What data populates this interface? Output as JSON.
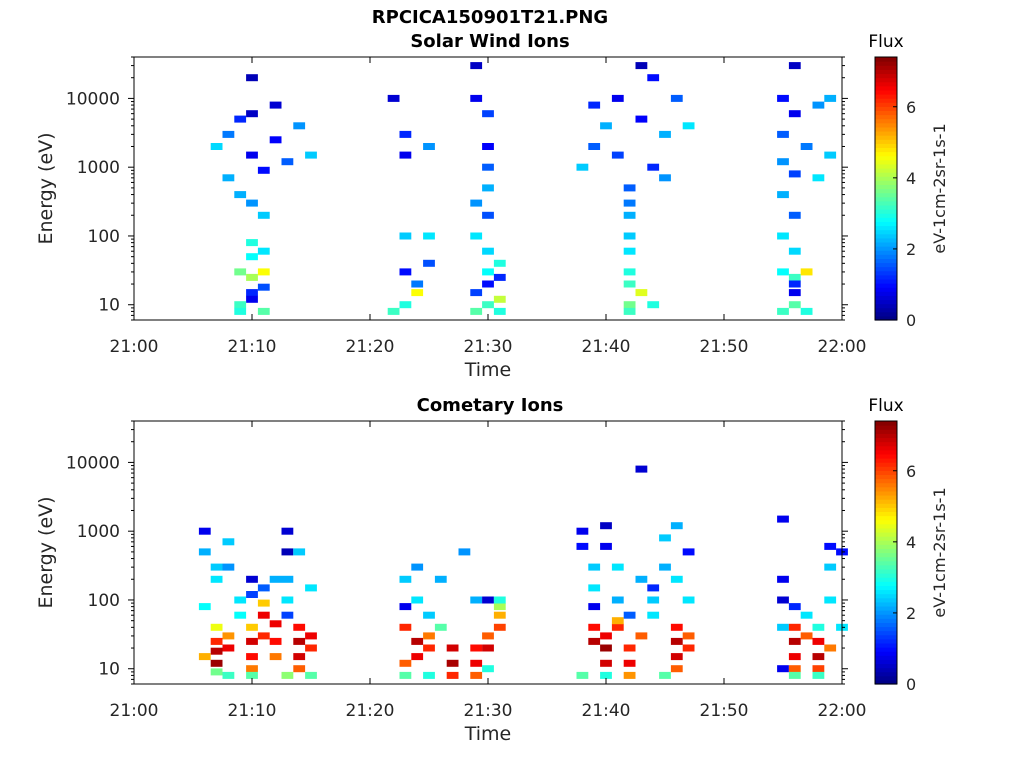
{
  "figure": {
    "title": "RPCICA150901T21.PNG"
  },
  "colorbar": {
    "colormap": "jet",
    "label": "Flux",
    "unit_label": "eV-1cm-2sr-1s-1",
    "ticks": [
      0,
      2,
      4,
      6
    ],
    "range": [
      0,
      7.4
    ]
  },
  "chart_data": [
    {
      "type": "heatmap",
      "title": "Solar Wind Ions",
      "xlabel": "Time",
      "ylabel": "Energy (eV)",
      "xlim": [
        "21:00",
        "22:00"
      ],
      "xticks": [
        "21:00",
        "21:10",
        "21:20",
        "21:30",
        "21:40",
        "21:50",
        "22:00"
      ],
      "yscale": "log",
      "ylim": [
        6,
        40000
      ],
      "yticks": [
        10,
        100,
        1000,
        10000
      ],
      "ytick_labels": [
        "10",
        "100",
        "1000",
        "10000"
      ],
      "grid": false,
      "cells": [
        [
          "21:07",
          2000,
          2.5
        ],
        [
          "21:08",
          700,
          2.2
        ],
        [
          "21:08",
          3000,
          1.8
        ],
        [
          "21:09",
          400,
          2.2
        ],
        [
          "21:09",
          5000,
          1.2
        ],
        [
          "21:10",
          300,
          2.0
        ],
        [
          "21:10",
          1500,
          0.8
        ],
        [
          "21:10",
          6000,
          0.5
        ],
        [
          "21:10",
          20000,
          0.4
        ],
        [
          "21:11",
          900,
          1.0
        ],
        [
          "21:11",
          200,
          2.4
        ],
        [
          "21:12",
          2500,
          0.9
        ],
        [
          "21:12",
          8000,
          0.6
        ],
        [
          "21:13",
          1200,
          1.6
        ],
        [
          "21:14",
          4000,
          2.0
        ],
        [
          "21:15",
          1500,
          2.4
        ],
        [
          "21:10",
          80,
          3.0
        ],
        [
          "21:10",
          50,
          2.8
        ],
        [
          "21:11",
          60,
          2.6
        ],
        [
          "21:09",
          30,
          3.6
        ],
        [
          "21:10",
          25,
          4.0
        ],
        [
          "21:11",
          30,
          4.6
        ],
        [
          "21:10",
          15,
          1.2
        ],
        [
          "21:10",
          12,
          0.8
        ],
        [
          "21:11",
          18,
          1.5
        ],
        [
          "21:09",
          10,
          3.2
        ],
        [
          "21:11",
          8,
          3.4
        ],
        [
          "21:09",
          8,
          3.0
        ],
        [
          "21:22",
          10000,
          0.6
        ],
        [
          "21:23",
          3000,
          1.2
        ],
        [
          "21:23",
          1500,
          0.8
        ],
        [
          "21:23",
          100,
          2.4
        ],
        [
          "21:23",
          30,
          1.0
        ],
        [
          "21:24",
          20,
          1.8
        ],
        [
          "21:24",
          15,
          4.6
        ],
        [
          "21:23",
          10,
          3.0
        ],
        [
          "21:22",
          8,
          3.2
        ],
        [
          "21:25",
          2000,
          2.0
        ],
        [
          "21:25",
          40,
          1.5
        ],
        [
          "21:25",
          100,
          2.6
        ],
        [
          "21:29",
          30000,
          0.5
        ],
        [
          "21:29",
          10000,
          0.8
        ],
        [
          "21:30",
          6000,
          1.4
        ],
        [
          "21:30",
          2000,
          0.9
        ],
        [
          "21:30",
          1000,
          1.6
        ],
        [
          "21:30",
          500,
          2.2
        ],
        [
          "21:29",
          300,
          2.0
        ],
        [
          "21:30",
          200,
          1.5
        ],
        [
          "21:29",
          100,
          2.6
        ],
        [
          "21:30",
          60,
          2.5
        ],
        [
          "21:30",
          30,
          2.8
        ],
        [
          "21:30",
          20,
          1.0
        ],
        [
          "21:29",
          15,
          1.4
        ],
        [
          "21:31",
          12,
          4.2
        ],
        [
          "21:30",
          10,
          3.2
        ],
        [
          "21:31",
          25,
          1.2
        ],
        [
          "21:31",
          40,
          3.0
        ],
        [
          "21:29",
          8,
          3.4
        ],
        [
          "21:31",
          8,
          3.0
        ],
        [
          "21:38",
          1000,
          2.4
        ],
        [
          "21:39",
          2000,
          1.6
        ],
        [
          "21:39",
          8000,
          1.2
        ],
        [
          "21:40",
          4000,
          2.2
        ],
        [
          "21:41",
          10000,
          0.8
        ],
        [
          "21:41",
          1500,
          1.4
        ],
        [
          "21:42",
          500,
          1.6
        ],
        [
          "21:42",
          300,
          1.8
        ],
        [
          "21:42",
          200,
          2.2
        ],
        [
          "21:42",
          100,
          2.4
        ],
        [
          "21:42",
          60,
          2.6
        ],
        [
          "21:42",
          30,
          3.0
        ],
        [
          "21:42",
          20,
          3.2
        ],
        [
          "21:43",
          15,
          4.4
        ],
        [
          "21:42",
          10,
          3.6
        ],
        [
          "21:42",
          8,
          3.2
        ],
        [
          "21:43",
          30000,
          0.4
        ],
        [
          "21:43",
          5000,
          0.9
        ],
        [
          "21:44",
          1000,
          1.2
        ],
        [
          "21:44",
          20000,
          1.0
        ],
        [
          "21:45",
          3000,
          2.2
        ],
        [
          "21:45",
          700,
          2.0
        ],
        [
          "21:46",
          10000,
          1.6
        ],
        [
          "21:47",
          4000,
          2.6
        ],
        [
          "21:44",
          10,
          3.0
        ],
        [
          "21:55",
          10000,
          1.0
        ],
        [
          "21:55",
          3000,
          1.6
        ],
        [
          "21:55",
          1200,
          2.0
        ],
        [
          "21:56",
          6000,
          0.8
        ],
        [
          "21:56",
          30000,
          0.5
        ],
        [
          "21:56",
          800,
          1.4
        ],
        [
          "21:55",
          400,
          2.2
        ],
        [
          "21:56",
          200,
          1.6
        ],
        [
          "21:55",
          100,
          2.6
        ],
        [
          "21:56",
          60,
          2.5
        ],
        [
          "21:55",
          30,
          2.8
        ],
        [
          "21:56",
          25,
          3.2
        ],
        [
          "21:57",
          30,
          4.8
        ],
        [
          "21:56",
          20,
          1.2
        ],
        [
          "21:56",
          15,
          0.8
        ],
        [
          "21:56",
          10,
          3.4
        ],
        [
          "21:55",
          8,
          3.2
        ],
        [
          "21:57",
          8,
          3.0
        ],
        [
          "21:57",
          2000,
          1.8
        ],
        [
          "21:58",
          8000,
          2.0
        ],
        [
          "21:59",
          1500,
          2.4
        ],
        [
          "21:59",
          10000,
          2.2
        ],
        [
          "21:58",
          700,
          2.6
        ]
      ]
    },
    {
      "type": "heatmap",
      "title": "Cometary Ions",
      "xlabel": "Time",
      "ylabel": "Energy (eV)",
      "xlim": [
        "21:00",
        "22:00"
      ],
      "xticks": [
        "21:00",
        "21:10",
        "21:20",
        "21:30",
        "21:40",
        "21:50",
        "22:00"
      ],
      "yscale": "log",
      "ylim": [
        6,
        40000
      ],
      "yticks": [
        10,
        100,
        1000,
        10000
      ],
      "ytick_labels": [
        "10",
        "100",
        "1000",
        "10000"
      ],
      "grid": false,
      "cells": [
        [
          "21:06",
          1000,
          0.8
        ],
        [
          "21:06",
          500,
          2.2
        ],
        [
          "21:07",
          300,
          2.4
        ],
        [
          "21:07",
          200,
          2.6
        ],
        [
          "21:06",
          80,
          2.8
        ],
        [
          "21:07",
          40,
          4.5
        ],
        [
          "21:07",
          25,
          6.2
        ],
        [
          "21:07",
          18,
          7.0
        ],
        [
          "21:07",
          12,
          7.2
        ],
        [
          "21:08",
          20,
          6.6
        ],
        [
          "21:08",
          30,
          5.4
        ],
        [
          "21:07",
          9,
          3.6
        ],
        [
          "21:08",
          8,
          3.2
        ],
        [
          "21:06",
          15,
          5.2
        ],
        [
          "21:08",
          300,
          2.0
        ],
        [
          "21:08",
          700,
          2.4
        ],
        [
          "21:09",
          100,
          2.6
        ],
        [
          "21:09",
          60,
          2.8
        ],
        [
          "21:10",
          200,
          0.6
        ],
        [
          "21:10",
          120,
          1.4
        ],
        [
          "21:10",
          40,
          5.0
        ],
        [
          "21:10",
          25,
          6.8
        ],
        [
          "21:10",
          15,
          6.4
        ],
        [
          "21:10",
          10,
          5.6
        ],
        [
          "21:11",
          30,
          6.2
        ],
        [
          "21:11",
          60,
          6.6
        ],
        [
          "21:11",
          90,
          5.0
        ],
        [
          "21:12",
          45,
          6.6
        ],
        [
          "21:12",
          25,
          6.4
        ],
        [
          "21:12",
          15,
          5.6
        ],
        [
          "21:12",
          200,
          2.2
        ],
        [
          "21:11",
          150,
          1.6
        ],
        [
          "21:10",
          8,
          3.4
        ],
        [
          "21:13",
          1000,
          0.6
        ],
        [
          "21:13",
          500,
          0.4
        ],
        [
          "21:13",
          200,
          2.2
        ],
        [
          "21:13",
          100,
          2.6
        ],
        [
          "21:13",
          60,
          1.4
        ],
        [
          "21:14",
          40,
          6.4
        ],
        [
          "21:14",
          25,
          7.0
        ],
        [
          "21:14",
          15,
          6.8
        ],
        [
          "21:14",
          10,
          5.8
        ],
        [
          "21:15",
          30,
          6.6
        ],
        [
          "21:15",
          20,
          6.2
        ],
        [
          "21:14",
          500,
          2.4
        ],
        [
          "21:15",
          150,
          2.6
        ],
        [
          "21:13",
          8,
          3.8
        ],
        [
          "21:15",
          8,
          3.4
        ],
        [
          "21:23",
          200,
          2.4
        ],
        [
          "21:23",
          80,
          0.8
        ],
        [
          "21:23",
          40,
          6.2
        ],
        [
          "21:24",
          25,
          7.0
        ],
        [
          "21:24",
          15,
          6.6
        ],
        [
          "21:23",
          12,
          5.8
        ],
        [
          "21:24",
          100,
          2.6
        ],
        [
          "21:25",
          60,
          2.4
        ],
        [
          "21:25",
          30,
          5.6
        ],
        [
          "21:25",
          20,
          6.2
        ],
        [
          "21:24",
          300,
          2.0
        ],
        [
          "21:26",
          200,
          2.2
        ],
        [
          "21:26",
          40,
          3.4
        ],
        [
          "21:27",
          20,
          6.8
        ],
        [
          "21:27",
          12,
          7.1
        ],
        [
          "21:27",
          8,
          6.2
        ],
        [
          "21:28",
          500,
          2.0
        ],
        [
          "21:23",
          8,
          3.4
        ],
        [
          "21:25",
          8,
          3.0
        ],
        [
          "21:29",
          100,
          2.2
        ],
        [
          "21:29",
          20,
          6.4
        ],
        [
          "21:29",
          12,
          6.6
        ],
        [
          "21:29",
          8,
          5.8
        ],
        [
          "21:30",
          30,
          5.8
        ],
        [
          "21:30",
          20,
          6.8
        ],
        [
          "21:30",
          100,
          0.6
        ],
        [
          "21:31",
          40,
          6.0
        ],
        [
          "21:31",
          60,
          5.2
        ],
        [
          "21:31",
          80,
          4.0
        ],
        [
          "21:30",
          10,
          3.0
        ],
        [
          "21:31",
          100,
          3.0
        ],
        [
          "21:38",
          1000,
          0.8
        ],
        [
          "21:38",
          600,
          1.0
        ],
        [
          "21:39",
          300,
          2.4
        ],
        [
          "21:39",
          150,
          2.6
        ],
        [
          "21:39",
          80,
          0.8
        ],
        [
          "21:39",
          40,
          6.4
        ],
        [
          "21:39",
          25,
          7.0
        ],
        [
          "21:40",
          20,
          7.2
        ],
        [
          "21:40",
          12,
          6.8
        ],
        [
          "21:40",
          30,
          6.6
        ],
        [
          "21:41",
          40,
          6.2
        ],
        [
          "21:41",
          50,
          5.2
        ],
        [
          "21:40",
          1200,
          0.5
        ],
        [
          "21:40",
          600,
          0.8
        ],
        [
          "21:41",
          300,
          2.6
        ],
        [
          "21:41",
          100,
          2.2
        ],
        [
          "21:42",
          60,
          1.6
        ],
        [
          "21:42",
          20,
          6.2
        ],
        [
          "21:42",
          12,
          6.6
        ],
        [
          "21:42",
          8,
          5.4
        ],
        [
          "21:43",
          30,
          5.8
        ],
        [
          "21:43",
          200,
          2.2
        ],
        [
          "21:43",
          8000,
          0.6
        ],
        [
          "21:44",
          100,
          2.4
        ],
        [
          "21:44",
          60,
          2.6
        ],
        [
          "21:44",
          150,
          1.2
        ],
        [
          "21:38",
          8,
          3.4
        ],
        [
          "21:40",
          8,
          3.0
        ],
        [
          "21:45",
          800,
          2.4
        ],
        [
          "21:45",
          300,
          2.2
        ],
        [
          "21:46",
          200,
          2.6
        ],
        [
          "21:46",
          40,
          6.4
        ],
        [
          "21:46",
          25,
          7.0
        ],
        [
          "21:46",
          15,
          6.8
        ],
        [
          "21:46",
          10,
          5.8
        ],
        [
          "21:47",
          30,
          5.8
        ],
        [
          "21:47",
          20,
          6.2
        ],
        [
          "21:47",
          500,
          1.0
        ],
        [
          "21:46",
          1200,
          2.2
        ],
        [
          "21:47",
          100,
          2.6
        ],
        [
          "21:45",
          8,
          3.4
        ],
        [
          "21:55",
          1500,
          0.8
        ],
        [
          "21:55",
          200,
          0.8
        ],
        [
          "21:55",
          100,
          0.6
        ],
        [
          "21:55",
          40,
          2.4
        ],
        [
          "21:55",
          10,
          0.8
        ],
        [
          "21:56",
          40,
          6.2
        ],
        [
          "21:56",
          25,
          7.0
        ],
        [
          "21:56",
          15,
          6.6
        ],
        [
          "21:56",
          10,
          5.8
        ],
        [
          "21:56",
          80,
          1.2
        ],
        [
          "21:57",
          30,
          5.8
        ],
        [
          "21:57",
          60,
          2.6
        ],
        [
          "21:58",
          40,
          3.0
        ],
        [
          "21:58",
          25,
          6.6
        ],
        [
          "21:58",
          15,
          7.0
        ],
        [
          "21:58",
          10,
          6.0
        ],
        [
          "21:59",
          20,
          5.6
        ],
        [
          "21:59",
          600,
          1.0
        ],
        [
          "21:59",
          300,
          2.4
        ],
        [
          "21:59",
          100,
          2.6
        ],
        [
          "21:56",
          8,
          3.4
        ],
        [
          "21:58",
          8,
          3.2
        ],
        [
          "22:00",
          500,
          1.0
        ],
        [
          "22:00",
          40,
          2.6
        ]
      ]
    }
  ]
}
